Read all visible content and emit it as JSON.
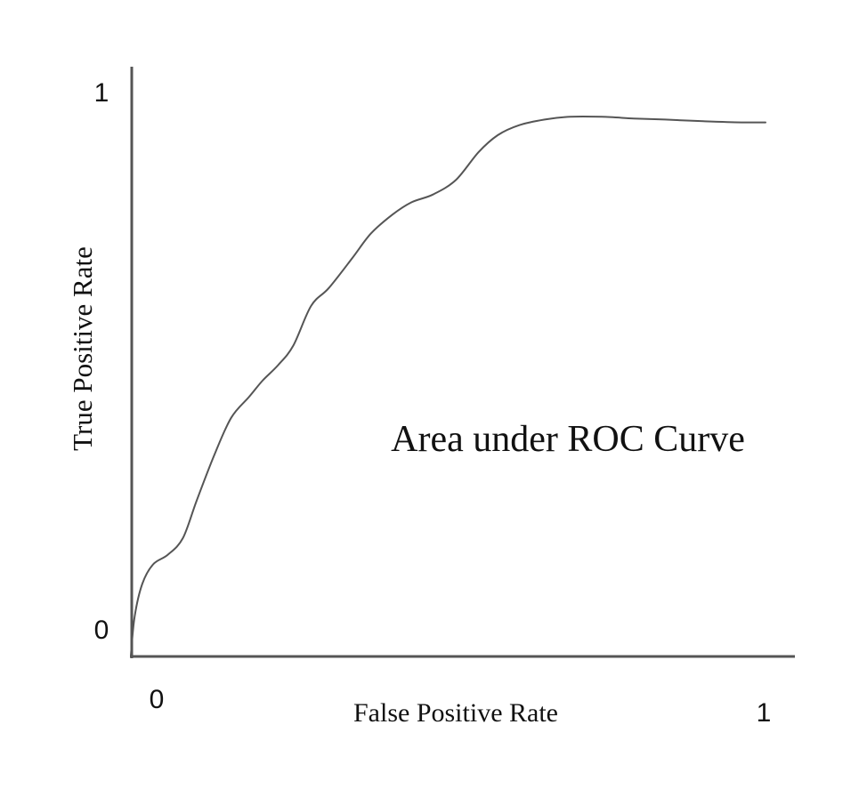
{
  "chart_data": {
    "type": "line",
    "title": "",
    "xlabel": "False Positive Rate",
    "ylabel": "True Positive Rate",
    "xlim": [
      0,
      1
    ],
    "ylim": [
      0,
      1
    ],
    "x_ticks": [
      "0",
      "1"
    ],
    "y_ticks": [
      "0",
      "1"
    ],
    "grid": false,
    "annotation": "Area under ROC Curve",
    "colors": {
      "axis": "#555555",
      "curve": "#555555",
      "text": "#111111"
    },
    "series": [
      {
        "x": [
          0.0,
          0.006,
          0.018,
          0.035,
          0.058,
          0.082,
          0.104,
          0.131,
          0.158,
          0.186,
          0.208,
          0.232,
          0.256,
          0.284,
          0.312,
          0.348,
          0.378,
          0.412,
          0.442,
          0.476,
          0.512,
          0.548,
          0.578,
          0.612,
          0.652,
          0.692,
          0.742,
          0.792,
          0.842,
          0.902,
          0.962,
          1.0
        ],
        "y": [
          0.0,
          0.07,
          0.128,
          0.163,
          0.18,
          0.21,
          0.278,
          0.357,
          0.425,
          0.462,
          0.492,
          0.519,
          0.554,
          0.625,
          0.657,
          0.709,
          0.754,
          0.788,
          0.81,
          0.824,
          0.85,
          0.9,
          0.93,
          0.948,
          0.958,
          0.963,
          0.963,
          0.96,
          0.958,
          0.955,
          0.953,
          0.953
        ]
      }
    ]
  }
}
